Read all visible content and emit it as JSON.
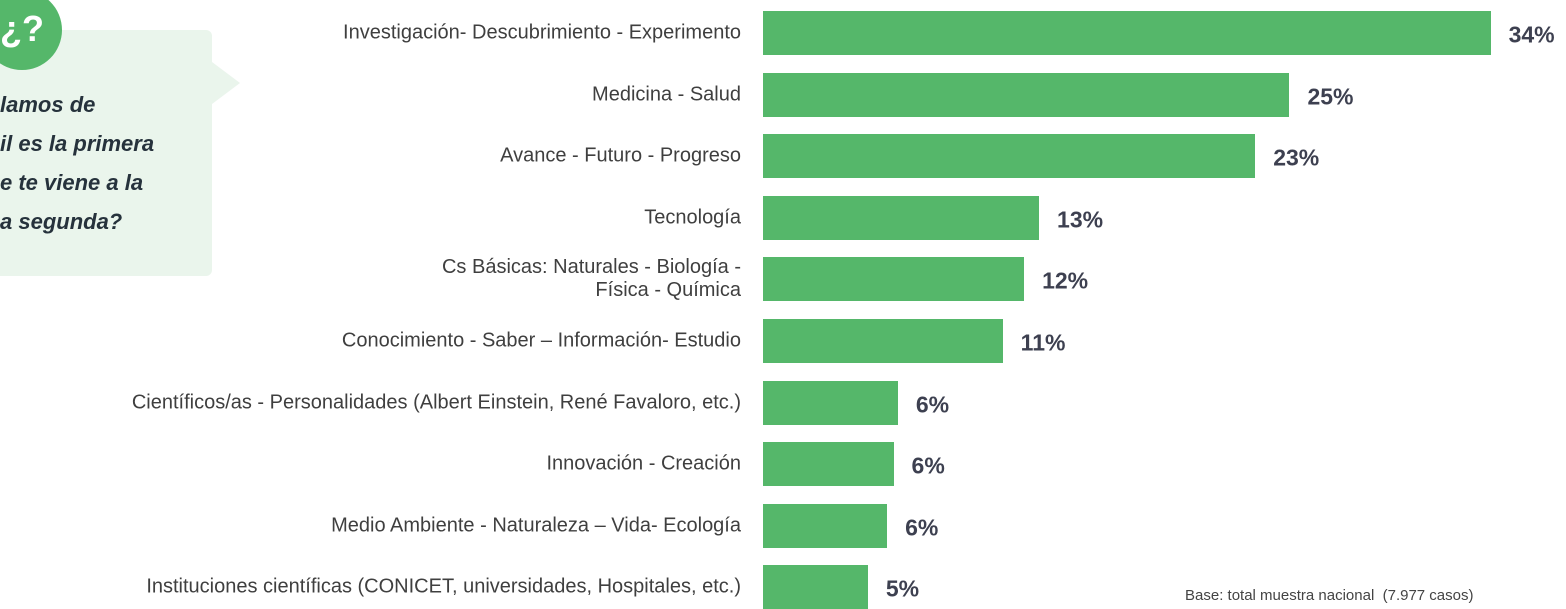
{
  "question_box": {
    "icon": "¿?",
    "lines": [
      "lamos de",
      "il es la primera",
      "e te viene a la",
      "a segunda?"
    ]
  },
  "chart_data": {
    "type": "bar",
    "orientation": "horizontal",
    "categories": [
      "Investigación- Descubrimiento - Experimento",
      "Medicina - Salud",
      "Avance  - Futuro - Progreso",
      "Tecnología",
      "Cs Básicas: Naturales - Biología -\nFísica -  Química",
      "Conocimiento - Saber – Información- Estudio",
      "Científicos/as - Personalidades (Albert Einstein, René Favaloro, etc.)",
      "Innovación - Creación",
      "Medio Ambiente - Naturaleza – Vida- Ecología",
      "Instituciones científicas (CONICET, universidades, Hospitales, etc.)"
    ],
    "values": [
      34.0,
      24.6,
      23.0,
      12.9,
      12.2,
      11.2,
      6.3,
      6.1,
      5.8,
      4.9
    ],
    "value_labels": [
      "34%",
      "25%",
      "23%",
      "13%",
      "12%",
      "11%",
      "6%",
      "6%",
      "6%",
      "5%"
    ],
    "color": "#55b76a",
    "xlim": [
      0,
      37
    ],
    "footnote": "Base: total muestra nacional  (7.977 casos)"
  }
}
